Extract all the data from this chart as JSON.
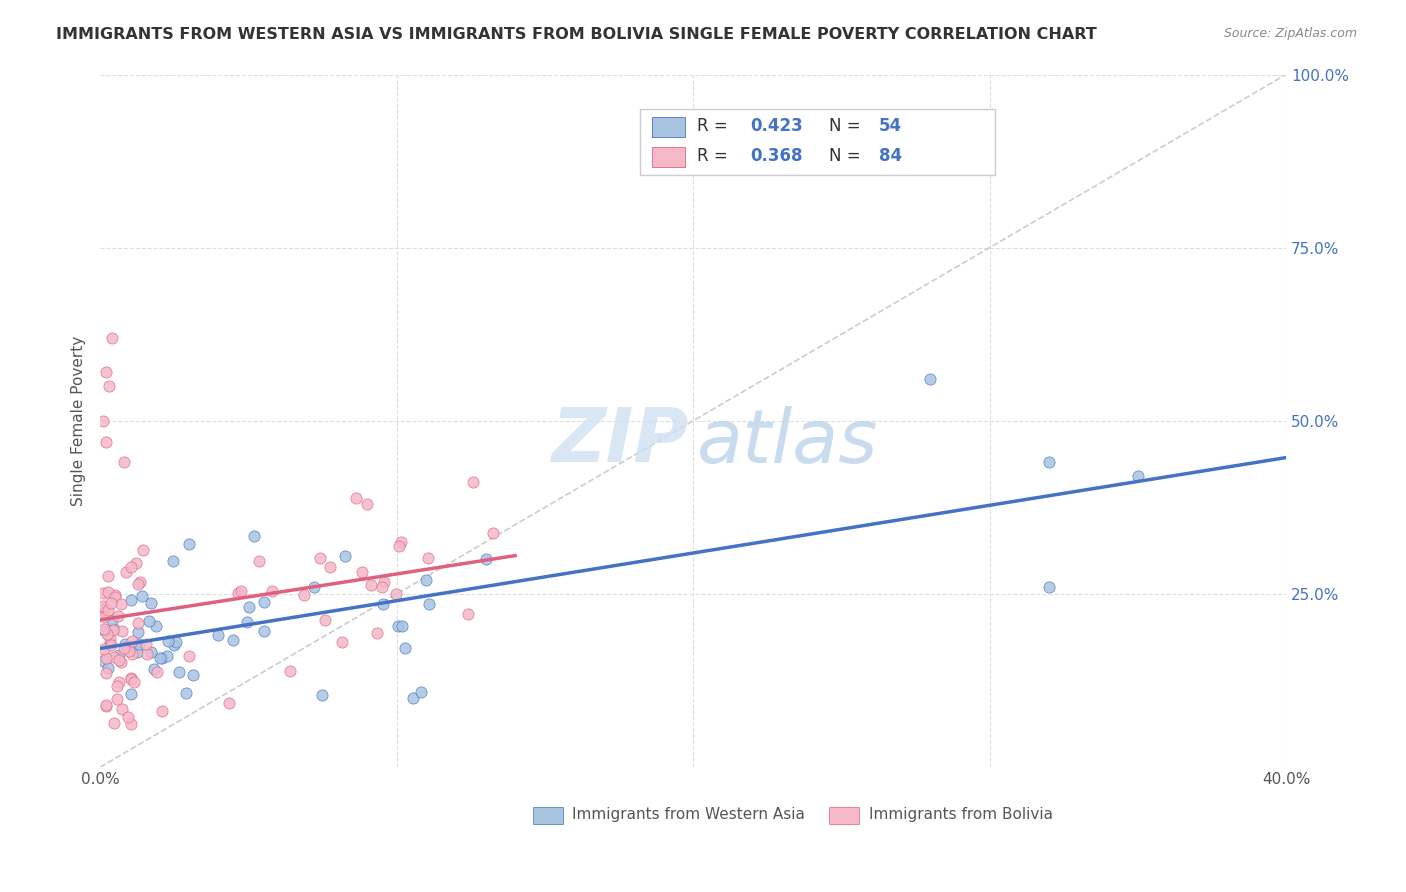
{
  "title": "IMMIGRANTS FROM WESTERN ASIA VS IMMIGRANTS FROM BOLIVIA SINGLE FEMALE POVERTY CORRELATION CHART",
  "source": "Source: ZipAtlas.com",
  "ylabel": "Single Female Poverty",
  "legend1_r": "0.423",
  "legend1_n": "54",
  "legend2_r": "0.368",
  "legend2_n": "84",
  "legend_bottom1": "Immigrants from Western Asia",
  "legend_bottom2": "Immigrants from Bolivia",
  "color_blue": "#a8c4e0",
  "color_pink": "#f4b8c8",
  "color_blue_text": "#4472c4",
  "color_pink_text": "#e07090",
  "trendline_blue": "#4472c4",
  "trendline_pink": "#e06080",
  "diagonal_color": "#cccccc",
  "xlim": [
    0.0,
    0.4
  ],
  "ylim": [
    0.0,
    1.0
  ]
}
